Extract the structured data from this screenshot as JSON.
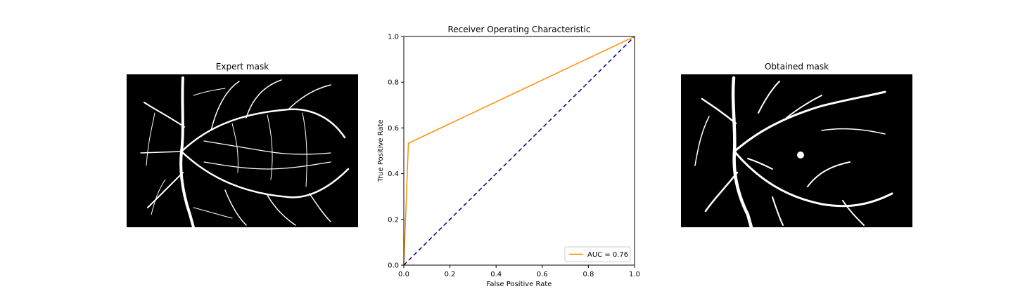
{
  "left_panel": {
    "title": "Expert mask"
  },
  "right_panel": {
    "title": "Obtained mask"
  },
  "chart_data": {
    "type": "line",
    "title": "Receiver Operating Characteristic",
    "xlabel": "False Positive Rate",
    "ylabel": "True Positive Rate",
    "xlim": [
      0,
      1
    ],
    "ylim": [
      0,
      1
    ],
    "xticks": [
      "0.0",
      "0.2",
      "0.4",
      "0.6",
      "0.8",
      "1.0"
    ],
    "yticks": [
      "0.0",
      "0.2",
      "0.4",
      "0.6",
      "0.8",
      "1.0"
    ],
    "grid": false,
    "legend": {
      "position": "lower-right",
      "entries": [
        "AUC = 0.76"
      ]
    },
    "series": [
      {
        "name": "AUC = 0.76",
        "color": "#ff8c00",
        "style": "solid",
        "x": [
          0,
          0.02,
          1
        ],
        "y": [
          0,
          0.533,
          1
        ]
      },
      {
        "color": "#000080",
        "style": "dashed",
        "x": [
          0,
          1
        ],
        "y": [
          0,
          1
        ]
      }
    ]
  },
  "colors": {
    "roc_curve": "#ff8c00",
    "diagonal": "#000080",
    "mask_background": "#000000",
    "vessel": "#ffffff"
  }
}
